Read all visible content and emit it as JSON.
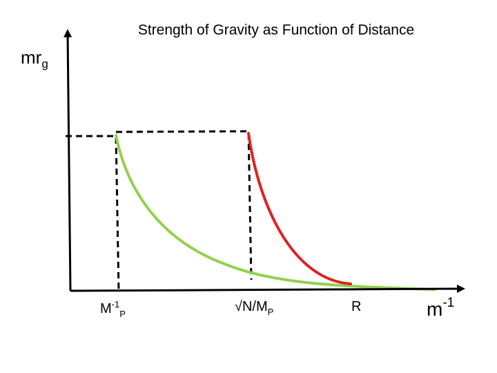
{
  "title": "Strength  of Gravity as Function of Distance",
  "y_axis_label": {
    "base": "mr",
    "subscript": "g"
  },
  "x_axis_label": {
    "base": "m",
    "superscript": "-1"
  },
  "x_ticks": [
    {
      "base": "M",
      "superscript": "-1",
      "subscript": "P"
    },
    {
      "base": "√N/M",
      "subscript": "P"
    },
    {
      "base": "R"
    }
  ],
  "colors": {
    "axes": "#000000",
    "green_curve": "#92d050",
    "red_curve": "#e02020",
    "dashed_guides": "#000000"
  }
}
